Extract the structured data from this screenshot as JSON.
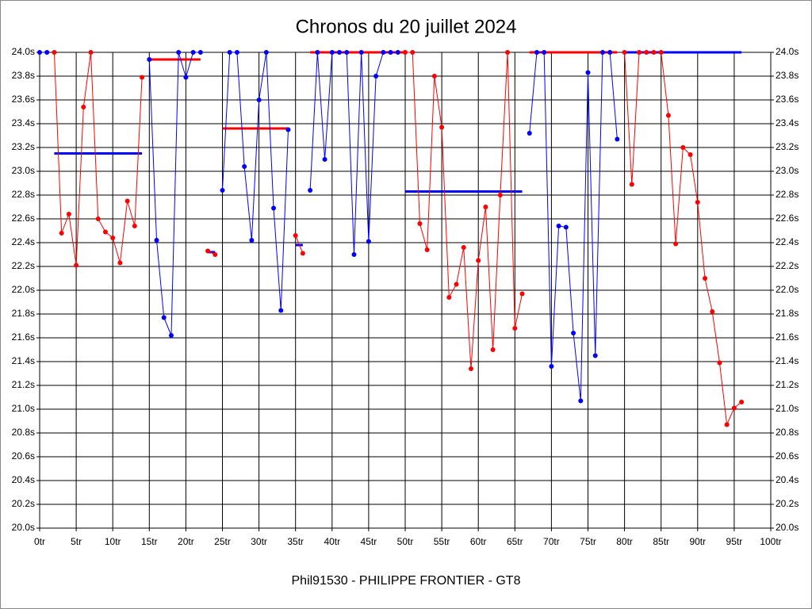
{
  "chart_data": {
    "type": "line",
    "title": "Chronos du 20 juillet 2024",
    "x_label": "Phil91530 - PHILIPPE FRONTIER - GT8",
    "xlim": [
      0,
      100
    ],
    "ylim": [
      20.0,
      24.0
    ],
    "grid": true,
    "xticks": [
      {
        "value": 0,
        "label": "0tr"
      },
      {
        "value": 5,
        "label": "5tr"
      },
      {
        "value": 10,
        "label": "10tr"
      },
      {
        "value": 15,
        "label": "15tr"
      },
      {
        "value": 20,
        "label": "20tr"
      },
      {
        "value": 25,
        "label": "25tr"
      },
      {
        "value": 30,
        "label": "30tr"
      },
      {
        "value": 35,
        "label": "35tr"
      },
      {
        "value": 40,
        "label": "40tr"
      },
      {
        "value": 45,
        "label": "45tr"
      },
      {
        "value": 50,
        "label": "50tr"
      },
      {
        "value": 55,
        "label": "55tr"
      },
      {
        "value": 60,
        "label": "60tr"
      },
      {
        "value": 65,
        "label": "65tr"
      },
      {
        "value": 70,
        "label": "70tr"
      },
      {
        "value": 75,
        "label": "75tr"
      },
      {
        "value": 80,
        "label": "80tr"
      },
      {
        "value": 85,
        "label": "85tr"
      },
      {
        "value": 90,
        "label": "90tr"
      },
      {
        "value": 95,
        "label": "95tr"
      },
      {
        "value": 100,
        "label": "100tr"
      }
    ],
    "yticks": [
      {
        "value": 20.0,
        "label": "20.0s"
      },
      {
        "value": 20.2,
        "label": "20.2s"
      },
      {
        "value": 20.4,
        "label": "20.4s"
      },
      {
        "value": 20.6,
        "label": "20.6s"
      },
      {
        "value": 20.8,
        "label": "20.8s"
      },
      {
        "value": 21.0,
        "label": "21.0s"
      },
      {
        "value": 21.2,
        "label": "21.2s"
      },
      {
        "value": 21.4,
        "label": "21.4s"
      },
      {
        "value": 21.6,
        "label": "21.6s"
      },
      {
        "value": 21.8,
        "label": "21.8s"
      },
      {
        "value": 22.0,
        "label": "22.0s"
      },
      {
        "value": 22.2,
        "label": "22.2s"
      },
      {
        "value": 22.4,
        "label": "22.4s"
      },
      {
        "value": 22.6,
        "label": "22.6s"
      },
      {
        "value": 22.8,
        "label": "22.8s"
      },
      {
        "value": 23.0,
        "label": "23.0s"
      },
      {
        "value": 23.2,
        "label": "23.2s"
      },
      {
        "value": 23.4,
        "label": "23.4s"
      },
      {
        "value": 23.6,
        "label": "23.6s"
      },
      {
        "value": 23.8,
        "label": "23.8s"
      },
      {
        "value": 24.0,
        "label": "24.0s"
      }
    ],
    "series": [
      {
        "color": "#0000ff",
        "x": [
          0,
          1
        ],
        "values": [
          24.0,
          24.0
        ]
      },
      {
        "color": "#ff0000",
        "x": [
          2,
          3,
          4,
          5,
          6,
          7,
          8,
          9,
          10,
          11,
          12,
          13,
          14
        ],
        "values": [
          24.0,
          22.48,
          22.64,
          22.21,
          23.54,
          24.0,
          22.6,
          22.49,
          22.44,
          22.23,
          22.75,
          22.54,
          23.79
        ],
        "avg": 23.15,
        "avg_x": [
          2,
          14
        ],
        "avg_color": "#0000ff"
      },
      {
        "color": "#0000ff",
        "x": [
          15,
          16,
          17,
          18,
          19,
          20,
          21,
          22
        ],
        "values": [
          23.94,
          22.42,
          21.77,
          21.62,
          24.0,
          23.79,
          24.0,
          24.0
        ],
        "avg": 23.94,
        "avg_x": [
          15,
          22
        ],
        "avg_color": "#ff0000"
      },
      {
        "color": "#ff0000",
        "x": [
          23,
          24
        ],
        "values": [
          22.33,
          22.3
        ],
        "avg": 22.32,
        "avg_x": [
          23,
          24
        ],
        "avg_color": "#0000ff"
      },
      {
        "color": "#0000ff",
        "x": [
          25,
          26,
          27,
          28,
          29,
          30,
          31,
          32,
          33,
          34
        ],
        "values": [
          22.84,
          24.0,
          24.0,
          23.04,
          22.42,
          23.6,
          24.0,
          22.69,
          21.83,
          23.35
        ],
        "avg": 23.36,
        "avg_x": [
          25,
          34
        ],
        "avg_color": "#ff0000"
      },
      {
        "color": "#ff0000",
        "x": [
          35,
          36
        ],
        "values": [
          22.46,
          22.31
        ],
        "avg": 22.38,
        "avg_x": [
          35,
          36
        ],
        "avg_color": "#0000ff"
      },
      {
        "color": "#0000ff",
        "x": [
          37,
          38,
          39,
          40,
          41,
          42,
          43,
          44,
          45,
          46,
          47,
          48,
          49
        ],
        "values": [
          22.84,
          24.0,
          23.1,
          24.0,
          24.0,
          24.0,
          22.3,
          24.0,
          22.41,
          23.8,
          24.0,
          24.0,
          24.0
        ],
        "avg": 24.0,
        "avg_x": [
          37,
          50
        ],
        "avg_color": "#ff0000"
      },
      {
        "color": "#ff0000",
        "x": [
          50,
          51,
          52,
          53,
          54,
          55,
          56,
          57,
          58,
          59,
          60,
          61,
          62,
          63,
          64,
          65,
          66
        ],
        "values": [
          24.0,
          24.0,
          22.56,
          22.34,
          23.8,
          23.37,
          21.94,
          22.05,
          22.36,
          21.34,
          22.25,
          22.7,
          21.5,
          22.8,
          24.0,
          21.68,
          21.97
        ],
        "avg": 22.83,
        "avg_x": [
          50,
          66
        ],
        "avg_color": "#0000ff"
      },
      {
        "color": "#0000ff",
        "x": [
          67,
          68,
          69,
          70,
          71,
          72,
          73,
          74,
          75,
          76,
          77,
          78,
          79
        ],
        "values": [
          23.32,
          24.0,
          24.0,
          21.36,
          22.54,
          22.53,
          21.64,
          21.07,
          23.83,
          21.45,
          24.0,
          24.0,
          23.27
        ],
        "avg": 24.0,
        "avg_x": [
          67,
          79
        ],
        "avg_color": "#ff0000"
      },
      {
        "color": "#ff0000",
        "x": [
          80,
          81,
          82,
          83,
          84,
          85,
          86,
          87,
          88,
          89,
          90,
          91,
          92,
          93,
          94,
          95,
          96
        ],
        "values": [
          24.0,
          22.89,
          24.0,
          24.0,
          24.0,
          24.0,
          23.47,
          22.39,
          23.2,
          23.14,
          22.74,
          22.1,
          21.82,
          21.39,
          20.87,
          21.01,
          21.06
        ],
        "avg": 24.0,
        "avg_x": [
          80,
          96
        ],
        "avg_color": "#0000ff"
      }
    ]
  }
}
